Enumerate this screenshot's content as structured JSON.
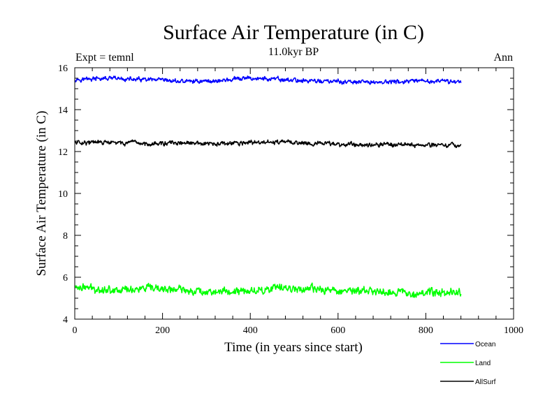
{
  "chart_data": {
    "type": "line",
    "title": "Surface Air Temperature (in C)",
    "subtitle": "11.0kyr BP",
    "left_annotation": "Expt = temnl",
    "right_annotation": "Ann",
    "xlabel": "Time (in years since start)",
    "ylabel": "Surface Air Temperature (in C)",
    "xlim": [
      0,
      1000
    ],
    "ylim": [
      4,
      16
    ],
    "xticks": [
      0,
      200,
      400,
      600,
      800,
      1000
    ],
    "yticks": [
      4,
      6,
      8,
      10,
      12,
      14,
      16
    ],
    "x_extent": [
      0,
      880
    ],
    "legend_position": "bottom-right, outside plot",
    "series": [
      {
        "name": "Ocean",
        "color": "#0000ff",
        "mean": 15.38,
        "amplitude": 0.09,
        "approx_values": [
          15.45,
          15.48,
          15.42,
          15.35,
          15.37,
          15.5,
          15.42,
          15.36,
          15.3,
          15.32,
          15.35,
          15.34
        ]
      },
      {
        "name": "Land",
        "color": "#00ff00",
        "mean": 5.38,
        "amplitude": 0.16,
        "approx_values": [
          5.55,
          5.4,
          5.45,
          5.4,
          5.3,
          5.35,
          5.5,
          5.4,
          5.35,
          5.3,
          5.25,
          5.3
        ]
      },
      {
        "name": "AllSurf",
        "color": "#000000",
        "mean": 12.38,
        "amplitude": 0.09,
        "approx_values": [
          12.45,
          12.42,
          12.38,
          12.4,
          12.35,
          12.42,
          12.45,
          12.38,
          12.33,
          12.35,
          12.32,
          12.3
        ]
      }
    ]
  }
}
